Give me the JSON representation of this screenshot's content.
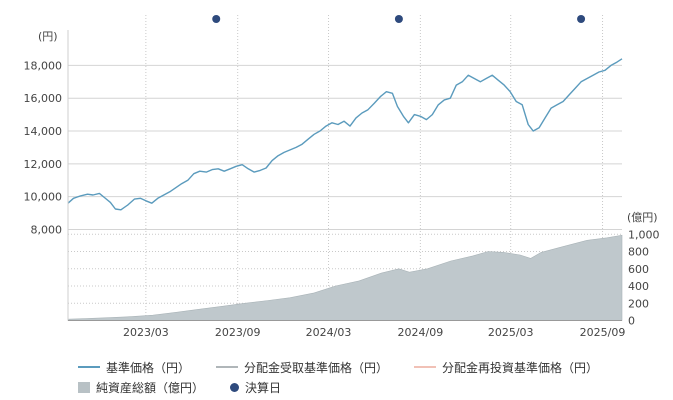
{
  "chart_data": {
    "type": "line",
    "top_panel": {
      "unit": "(円)",
      "yticks": [
        8000,
        10000,
        12000,
        14000,
        16000,
        18000
      ],
      "ylim": [
        8000,
        19700
      ],
      "series": [
        {
          "name": "基準価格（円）",
          "color": "#5b9bbd",
          "points": [
            [
              "2022-09-26",
              9600
            ],
            [
              "2022-10-07",
              9900
            ],
            [
              "2022-10-21",
              10050
            ],
            [
              "2022-11-04",
              10150
            ],
            [
              "2022-11-15",
              10100
            ],
            [
              "2022-11-28",
              10200
            ],
            [
              "2022-12-08",
              9950
            ],
            [
              "2022-12-20",
              9650
            ],
            [
              "2022-12-30",
              9250
            ],
            [
              "2023-01-10",
              9200
            ],
            [
              "2023-01-24",
              9500
            ],
            [
              "2023-02-06",
              9850
            ],
            [
              "2023-02-18",
              9900
            ],
            [
              "2023-03-01",
              9750
            ],
            [
              "2023-03-13",
              9600
            ],
            [
              "2023-03-25",
              9900
            ],
            [
              "2023-04-06",
              10100
            ],
            [
              "2023-04-18",
              10300
            ],
            [
              "2023-04-30",
              10550
            ],
            [
              "2023-05-12",
              10800
            ],
            [
              "2023-05-24",
              11000
            ],
            [
              "2023-06-05",
              11400
            ],
            [
              "2023-06-17",
              11550
            ],
            [
              "2023-06-30",
              11500
            ],
            [
              "2023-07-12",
              11650
            ],
            [
              "2023-07-24",
              11700
            ],
            [
              "2023-08-05",
              11550
            ],
            [
              "2023-08-17",
              11700
            ],
            [
              "2023-08-29",
              11850
            ],
            [
              "2023-09-10",
              11950
            ],
            [
              "2023-09-22",
              11700
            ],
            [
              "2023-10-04",
              11500
            ],
            [
              "2023-10-16",
              11600
            ],
            [
              "2023-10-28",
              11750
            ],
            [
              "2023-11-09",
              12200
            ],
            [
              "2023-11-21",
              12500
            ],
            [
              "2023-12-03",
              12700
            ],
            [
              "2023-12-15",
              12850
            ],
            [
              "2023-12-27",
              13000
            ],
            [
              "2024-01-08",
              13200
            ],
            [
              "2024-01-20",
              13500
            ],
            [
              "2024-02-01",
              13800
            ],
            [
              "2024-02-13",
              14000
            ],
            [
              "2024-02-25",
              14300
            ],
            [
              "2024-03-08",
              14500
            ],
            [
              "2024-03-20",
              14400
            ],
            [
              "2024-04-01",
              14600
            ],
            [
              "2024-04-13",
              14300
            ],
            [
              "2024-04-25",
              14800
            ],
            [
              "2024-05-07",
              15100
            ],
            [
              "2024-05-19",
              15300
            ],
            [
              "2024-06-01",
              15700
            ],
            [
              "2024-06-13",
              16100
            ],
            [
              "2024-06-25",
              16400
            ],
            [
              "2024-07-07",
              16300
            ],
            [
              "2024-07-17",
              15500
            ],
            [
              "2024-07-29",
              14900
            ],
            [
              "2024-08-08",
              14500
            ],
            [
              "2024-08-20",
              15000
            ],
            [
              "2024-09-01",
              14900
            ],
            [
              "2024-09-13",
              14700
            ],
            [
              "2024-09-25",
              15000
            ],
            [
              "2024-10-07",
              15600
            ],
            [
              "2024-10-19",
              15900
            ],
            [
              "2024-10-31",
              16000
            ],
            [
              "2024-11-12",
              16800
            ],
            [
              "2024-11-24",
              17000
            ],
            [
              "2024-12-06",
              17400
            ],
            [
              "2024-12-18",
              17200
            ],
            [
              "2024-12-30",
              17000
            ],
            [
              "2025-01-11",
              17200
            ],
            [
              "2025-01-23",
              17400
            ],
            [
              "2025-02-04",
              17100
            ],
            [
              "2025-02-16",
              16800
            ],
            [
              "2025-02-28",
              16400
            ],
            [
              "2025-03-12",
              15800
            ],
            [
              "2025-03-24",
              15600
            ],
            [
              "2025-04-05",
              14400
            ],
            [
              "2025-04-15",
              14000
            ],
            [
              "2025-04-27",
              14200
            ],
            [
              "2025-05-09",
              14800
            ],
            [
              "2025-05-21",
              15400
            ],
            [
              "2025-06-02",
              15600
            ],
            [
              "2025-06-14",
              15800
            ],
            [
              "2025-06-26",
              16200
            ],
            [
              "2025-07-08",
              16600
            ],
            [
              "2025-07-20",
              17000
            ],
            [
              "2025-08-01",
              17200
            ],
            [
              "2025-08-13",
              17400
            ],
            [
              "2025-08-25",
              17600
            ],
            [
              "2025-09-06",
              17700
            ],
            [
              "2025-09-18",
              18000
            ],
            [
              "2025-09-30",
              18200
            ],
            [
              "2025-10-10",
              18400
            ]
          ]
        }
      ],
      "settlement_dates": [
        "2023-07-20",
        "2024-07-20",
        "2025-07-20"
      ]
    },
    "bottom_panel": {
      "type": "area",
      "unit": "(億円)",
      "yticks": [
        0,
        200,
        400,
        600,
        800,
        1000
      ],
      "ytick_labels": [
        "0",
        "200",
        "400",
        "600",
        "800",
        "1,000"
      ],
      "ylim": [
        0,
        1050
      ],
      "series": [
        {
          "name": "純資産総額（億円）",
          "color": "#bfc8cc",
          "points": [
            [
              "2022-09-26",
              15
            ],
            [
              "2022-11-01",
              22
            ],
            [
              "2022-12-15",
              32
            ],
            [
              "2023-02-01",
              45
            ],
            [
              "2023-03-15",
              62
            ],
            [
              "2023-05-01",
              95
            ],
            [
              "2023-06-15",
              130
            ],
            [
              "2023-08-01",
              165
            ],
            [
              "2023-09-15",
              200
            ],
            [
              "2023-11-01",
              232
            ],
            [
              "2023-12-15",
              265
            ],
            [
              "2024-02-01",
              320
            ],
            [
              "2024-03-15",
              400
            ],
            [
              "2024-05-01",
              460
            ],
            [
              "2024-06-15",
              550
            ],
            [
              "2024-07-20",
              600
            ],
            [
              "2024-08-10",
              560
            ],
            [
              "2024-09-15",
              600
            ],
            [
              "2024-11-01",
              690
            ],
            [
              "2024-12-15",
              750
            ],
            [
              "2025-01-15",
              800
            ],
            [
              "2025-02-15",
              790
            ],
            [
              "2025-03-20",
              760
            ],
            [
              "2025-04-10",
              720
            ],
            [
              "2025-05-01",
              790
            ],
            [
              "2025-06-15",
              860
            ],
            [
              "2025-08-01",
              930
            ],
            [
              "2025-09-10",
              960
            ],
            [
              "2025-10-10",
              990
            ]
          ]
        }
      ]
    },
    "x_axis": {
      "ticks": [
        "2023-03-01",
        "2023-09-01",
        "2024-03-01",
        "2024-09-01",
        "2025-03-01",
        "2025-09-01"
      ],
      "tick_labels": [
        "2023/03",
        "2023/09",
        "2024/03",
        "2024/09",
        "2025/03",
        "2025/09"
      ],
      "xlim": [
        "2022-09-26",
        "2025-10-10"
      ]
    },
    "grid": true,
    "legend": {
      "placement": "bottom",
      "items": [
        {
          "label": "基準価格（円）",
          "swatch": "line",
          "color": "#5b9bbd"
        },
        {
          "label": "分配金受取基準価格（円）",
          "swatch": "line",
          "color": "#b0b6b9"
        },
        {
          "label": "分配金再投資基準価格（円）",
          "swatch": "line",
          "color": "#f1c1b6"
        },
        {
          "label": "純資産総額（億円）",
          "swatch": "box",
          "color": "#b8c1c5"
        },
        {
          "label": "決算日",
          "swatch": "dot",
          "color": "#2e4a7d"
        }
      ]
    }
  }
}
